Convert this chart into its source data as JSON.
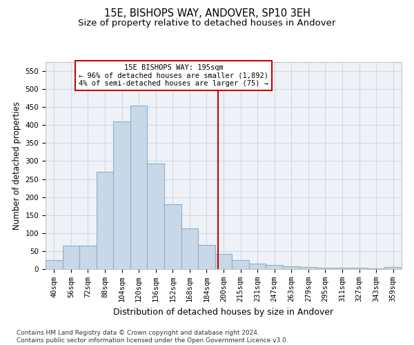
{
  "title1": "15E, BISHOPS WAY, ANDOVER, SP10 3EH",
  "title2": "Size of property relative to detached houses in Andover",
  "xlabel": "Distribution of detached houses by size in Andover",
  "ylabel": "Number of detached properties",
  "categories": [
    "40sqm",
    "56sqm",
    "72sqm",
    "88sqm",
    "104sqm",
    "120sqm",
    "136sqm",
    "152sqm",
    "168sqm",
    "184sqm",
    "200sqm",
    "215sqm",
    "231sqm",
    "247sqm",
    "263sqm",
    "279sqm",
    "295sqm",
    "311sqm",
    "327sqm",
    "343sqm",
    "359sqm"
  ],
  "values": [
    25,
    65,
    65,
    270,
    410,
    455,
    293,
    180,
    113,
    68,
    42,
    25,
    15,
    12,
    7,
    5,
    4,
    3,
    4,
    2,
    5
  ],
  "bar_color": "#c8d8e8",
  "bar_edge_color": "#8ab0cc",
  "bar_linewidth": 0.8,
  "vline_color": "#cc0000",
  "annotation_lines": [
    "15E BISHOPS WAY: 195sqm",
    "← 96% of detached houses are smaller (1,892)",
    "4% of semi-detached houses are larger (75) →"
  ],
  "annotation_box_color": "#cc0000",
  "ylim": [
    0,
    575
  ],
  "yticks": [
    0,
    50,
    100,
    150,
    200,
    250,
    300,
    350,
    400,
    450,
    500,
    550
  ],
  "grid_color": "#d0d8e0",
  "background_color": "#eef2f7",
  "footer": "Contains HM Land Registry data © Crown copyright and database right 2024.\nContains public sector information licensed under the Open Government Licence v3.0.",
  "title1_fontsize": 10.5,
  "title2_fontsize": 9.5,
  "xlabel_fontsize": 9,
  "ylabel_fontsize": 8.5,
  "tick_fontsize": 7.5,
  "footer_fontsize": 6.5
}
